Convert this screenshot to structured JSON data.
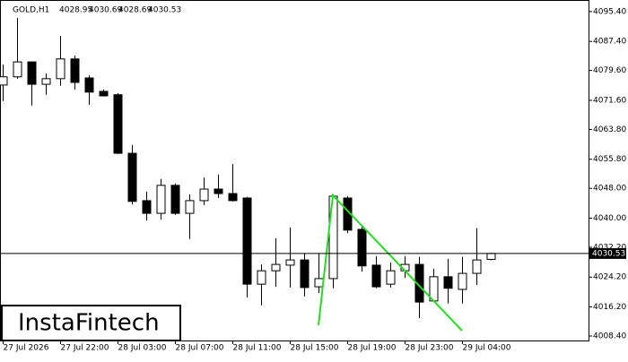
{
  "chart_data": {
    "type": "candlestick",
    "symbol": "GOLD,H1",
    "ohlc_header": [
      4028.95,
      4030.69,
      4028.69,
      4030.53
    ],
    "logo": "InstaFintech",
    "categories": [
      "27 Jul 2026",
      null,
      null,
      null,
      "27 Jul 22:00",
      null,
      null,
      null,
      "28 Jul 03:00",
      null,
      null,
      null,
      "28 Jul 07:00",
      null,
      null,
      null,
      "28 Jul 11:00",
      null,
      null,
      null,
      "28 Jul 15:00",
      null,
      null,
      null,
      "28 Jul 19:00",
      null,
      null,
      null,
      "28 Jul 23:00",
      null,
      null,
      null,
      "29 Jul 04:00",
      null,
      null
    ],
    "open": [
      4075.7,
      4077.9,
      4081.9,
      4075.9,
      4077.4,
      4082.7,
      4077.6,
      4074.0,
      4073.1,
      4057.4,
      4044.7,
      4041.3,
      4048.8,
      4041.3,
      4044.7,
      4047.8,
      4046.6,
      4045.4,
      4022.3,
      4025.9,
      4027.4,
      4028.8,
      4021.6,
      4023.8,
      4045.4,
      4037.0,
      4027.4,
      4022.3,
      4025.9,
      4027.6,
      4017.8,
      4024.3,
      4020.9,
      4025.2,
      4028.95
    ],
    "high": [
      4081.2,
      4093.7,
      4081.9,
      4078.8,
      4088.9,
      4083.6,
      4078.3,
      4074.5,
      4073.5,
      4059.6,
      4047.1,
      4050.5,
      4049.3,
      4046.4,
      4050.9,
      4051.7,
      4054.5,
      4045.7,
      4027.6,
      4034.6,
      4037.5,
      4030.5,
      4030.5,
      4046.4,
      4045.9,
      4038.2,
      4029.8,
      4028.1,
      4029.8,
      4029.6,
      4026.4,
      4029.1,
      4029.6,
      4037.3,
      4030.69
    ],
    "low": [
      4071.4,
      4077.4,
      4070.2,
      4073.1,
      4075.5,
      4074.5,
      4070.4,
      4072.6,
      4057.2,
      4043.7,
      4039.4,
      4039.6,
      4040.9,
      4034.4,
      4043.5,
      4045.4,
      4044.5,
      4018.7,
      4016.6,
      4021.6,
      4021.4,
      4019.0,
      4019.9,
      4021.2,
      4036.0,
      4025.7,
      4021.2,
      4021.4,
      4024.0,
      4013.2,
      4017.5,
      4017.1,
      4017.1,
      4022.1,
      4028.69
    ],
    "close": [
      4077.9,
      4081.9,
      4075.9,
      4077.4,
      4082.7,
      4076.4,
      4073.8,
      4072.8,
      4057.4,
      4044.5,
      4041.3,
      4048.8,
      4041.3,
      4044.7,
      4047.8,
      4046.6,
      4044.7,
      4022.3,
      4025.9,
      4027.6,
      4028.8,
      4021.4,
      4023.8,
      4045.9,
      4036.8,
      4027.2,
      4021.6,
      4025.9,
      4027.6,
      4017.5,
      4024.3,
      4021.2,
      4025.2,
      4028.8,
      4030.53
    ],
    "current_price": 4030.53,
    "ylim": [
      4007.2,
      4098.5
    ],
    "yticks": [
      {
        "value": 4095.4,
        "label": "4095.40"
      },
      {
        "value": 4087.4,
        "label": "4087.40"
      },
      {
        "value": 4079.6,
        "label": "4079.60"
      },
      {
        "value": 4071.6,
        "label": "4071.60"
      },
      {
        "value": 4063.8,
        "label": "4063.80"
      },
      {
        "value": 4055.8,
        "label": "4055.80"
      },
      {
        "value": 4048,
        "label": "4048.00"
      },
      {
        "value": 4040,
        "label": "4040.00"
      },
      {
        "value": 4032.2,
        "label": "4032.20"
      },
      {
        "value": 4024.2,
        "label": "4024.20"
      },
      {
        "value": 4016.2,
        "label": "4016.20"
      },
      {
        "value": 4008.4,
        "label": "4008.40"
      }
    ]
  }
}
